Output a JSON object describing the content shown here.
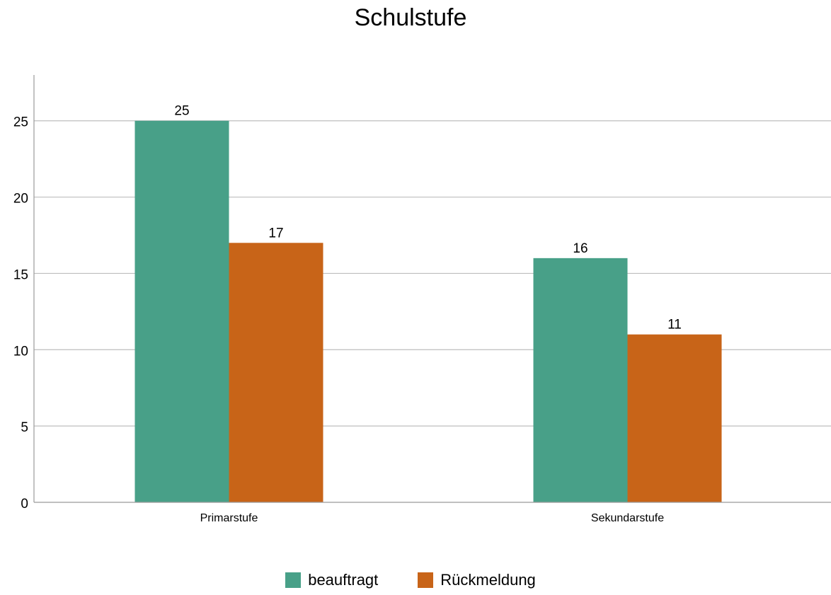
{
  "chart_data": {
    "type": "bar",
    "title": "Schulstufe",
    "categories": [
      "Primarstufe",
      "Sekundarstufe"
    ],
    "series": [
      {
        "name": "beauftragt",
        "values": [
          25,
          16
        ],
        "color": "#48A088"
      },
      {
        "name": "Rückmeldung",
        "values": [
          17,
          11
        ],
        "color": "#C86418"
      }
    ],
    "ylim": [
      0,
      28
    ],
    "yticks": [
      0,
      5,
      10,
      15,
      20,
      25
    ],
    "grid": true,
    "data_labels": true,
    "legend_position": "bottom",
    "colors": {
      "grid": "#BEBEBE",
      "axis": "#9A9A9A",
      "text": "#000000"
    }
  }
}
